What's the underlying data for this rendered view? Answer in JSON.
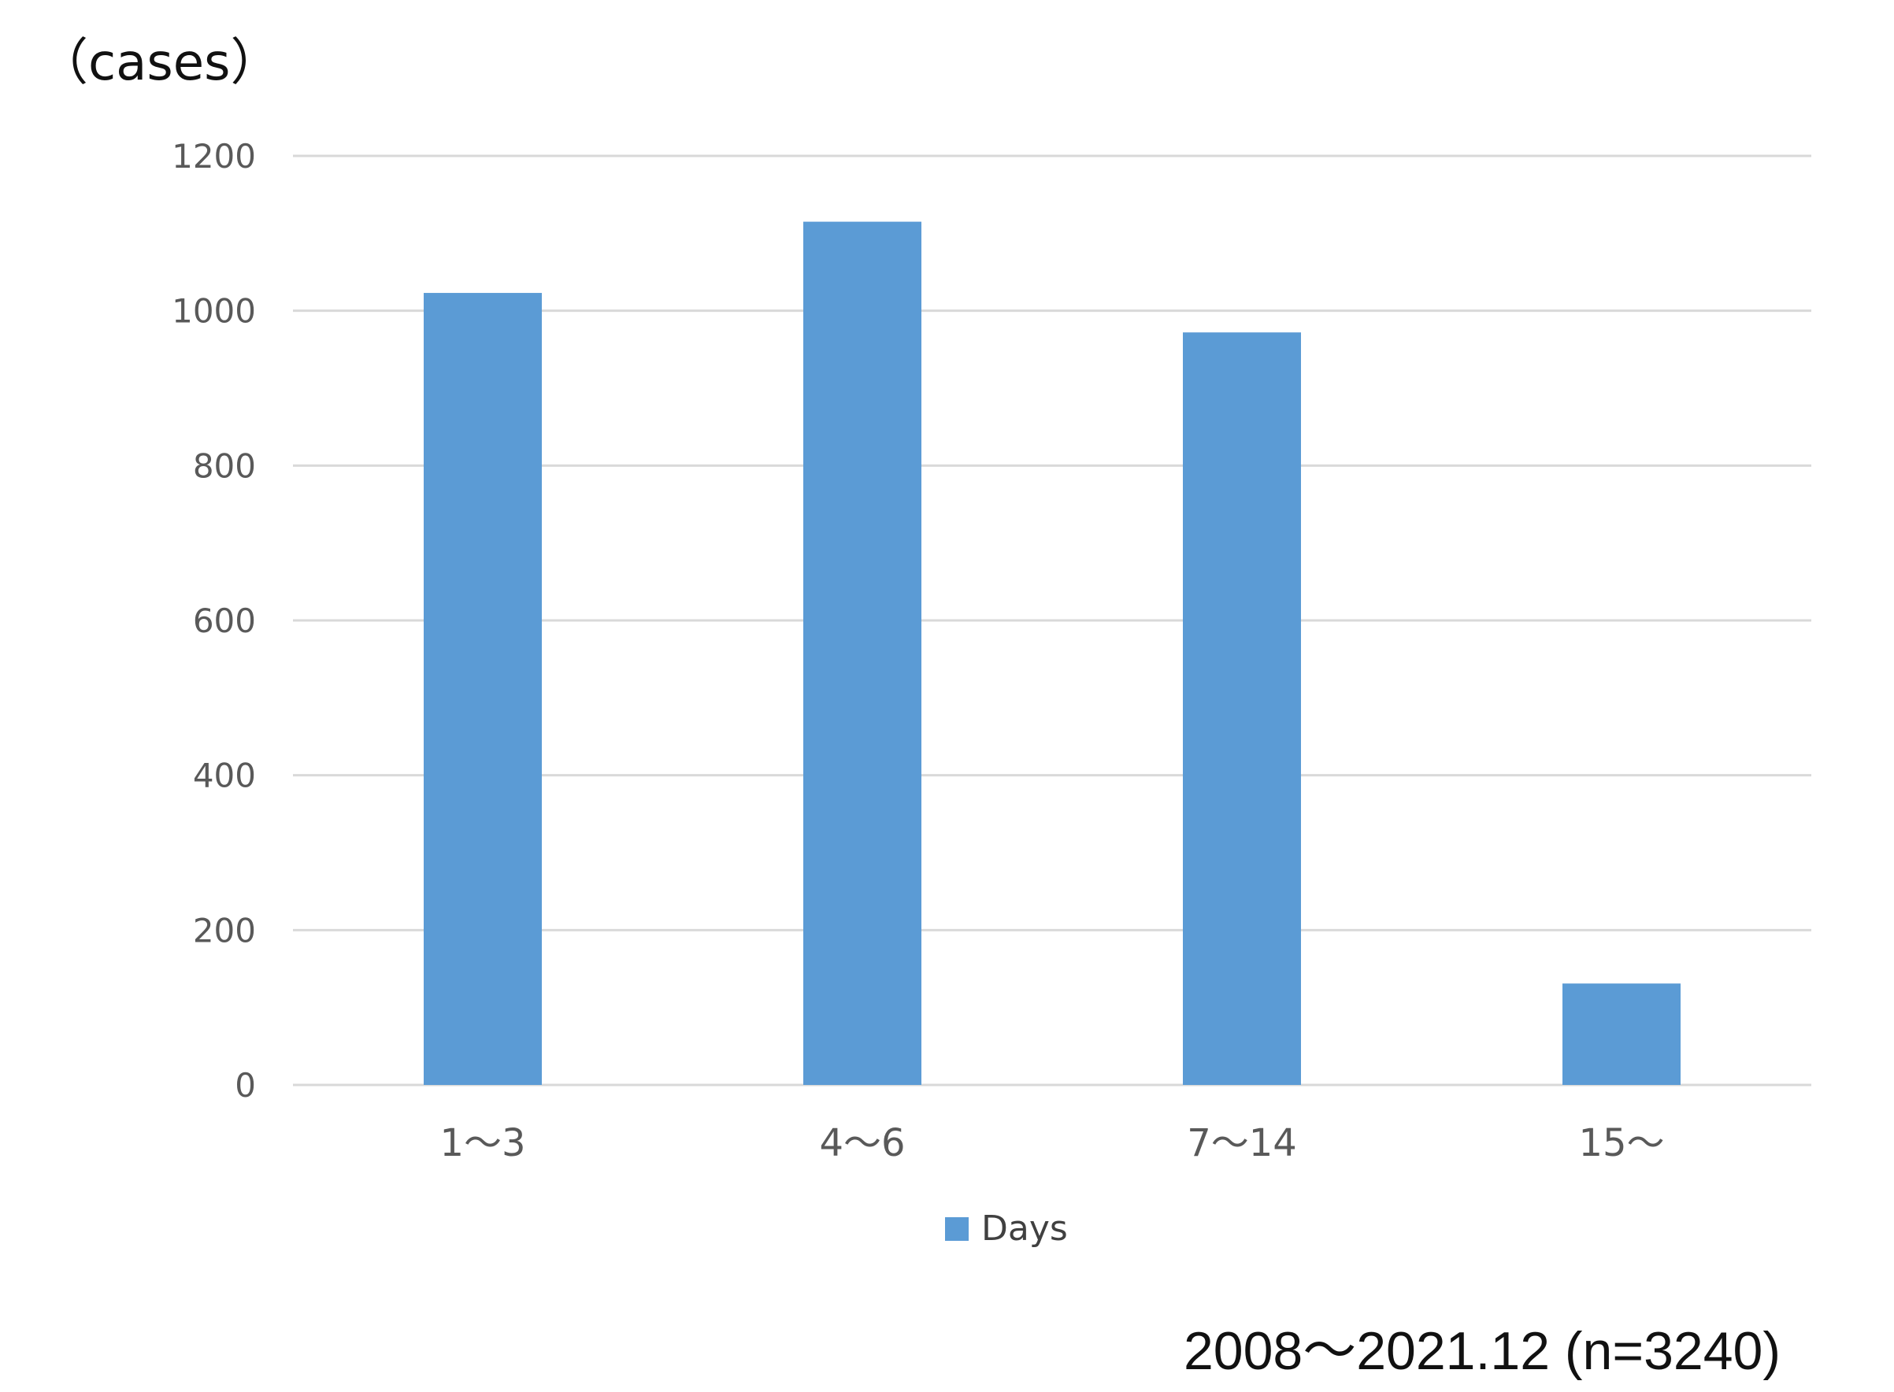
{
  "unit_label": "（cases）",
  "footnote": "2008～2021.12 (n=3240)",
  "colors": {
    "bar": "#5b9bd5",
    "grid": "#d9d9d9",
    "axis_text": "#595959"
  },
  "chart_data": {
    "type": "bar",
    "categories": [
      "1～3",
      "4～6",
      "7～14",
      "15～"
    ],
    "series": [
      {
        "name": "Days",
        "values": [
          1023,
          1115,
          972,
          131
        ]
      }
    ],
    "yticks": [
      0,
      200,
      400,
      600,
      800,
      1000,
      1200
    ],
    "ylim": [
      0,
      1200
    ],
    "grid": true,
    "legend_position": "bottom"
  }
}
